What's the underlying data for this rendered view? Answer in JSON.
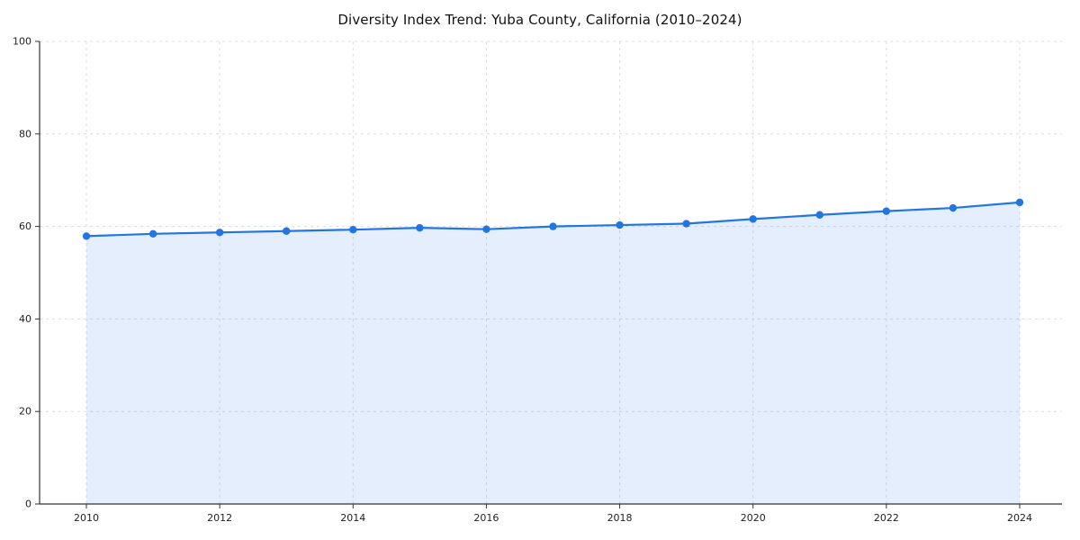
{
  "chart_data": {
    "type": "line",
    "title": "Diversity Index Trend: Yuba County, California (2010–2024)",
    "x": [
      2010,
      2011,
      2012,
      2013,
      2014,
      2015,
      2016,
      2017,
      2018,
      2019,
      2020,
      2021,
      2022,
      2023,
      2024
    ],
    "series": [
      {
        "name": "Diversity Index",
        "values": [
          57.9,
          58.4,
          58.7,
          59.0,
          59.3,
          59.7,
          59.4,
          60.0,
          60.3,
          60.6,
          61.6,
          62.5,
          63.3,
          64.0,
          65.2
        ]
      }
    ],
    "xlabel": "",
    "ylabel": "",
    "xlim": [
      2009.3,
      2024.65
    ],
    "ylim": [
      0,
      100
    ],
    "xticks": [
      2010,
      2012,
      2014,
      2016,
      2018,
      2020,
      2022,
      2024
    ],
    "yticks": [
      0,
      20,
      40,
      60,
      80,
      100
    ],
    "grid": true,
    "legend": false,
    "line_color": "#2276e3",
    "marker_color": "#2276e3",
    "fill_color": "#2276e3",
    "fill_opacity": 0.12,
    "grid_color": "#dcdcdc",
    "spine_color": "#333333",
    "tick_label_color": "#222222"
  }
}
